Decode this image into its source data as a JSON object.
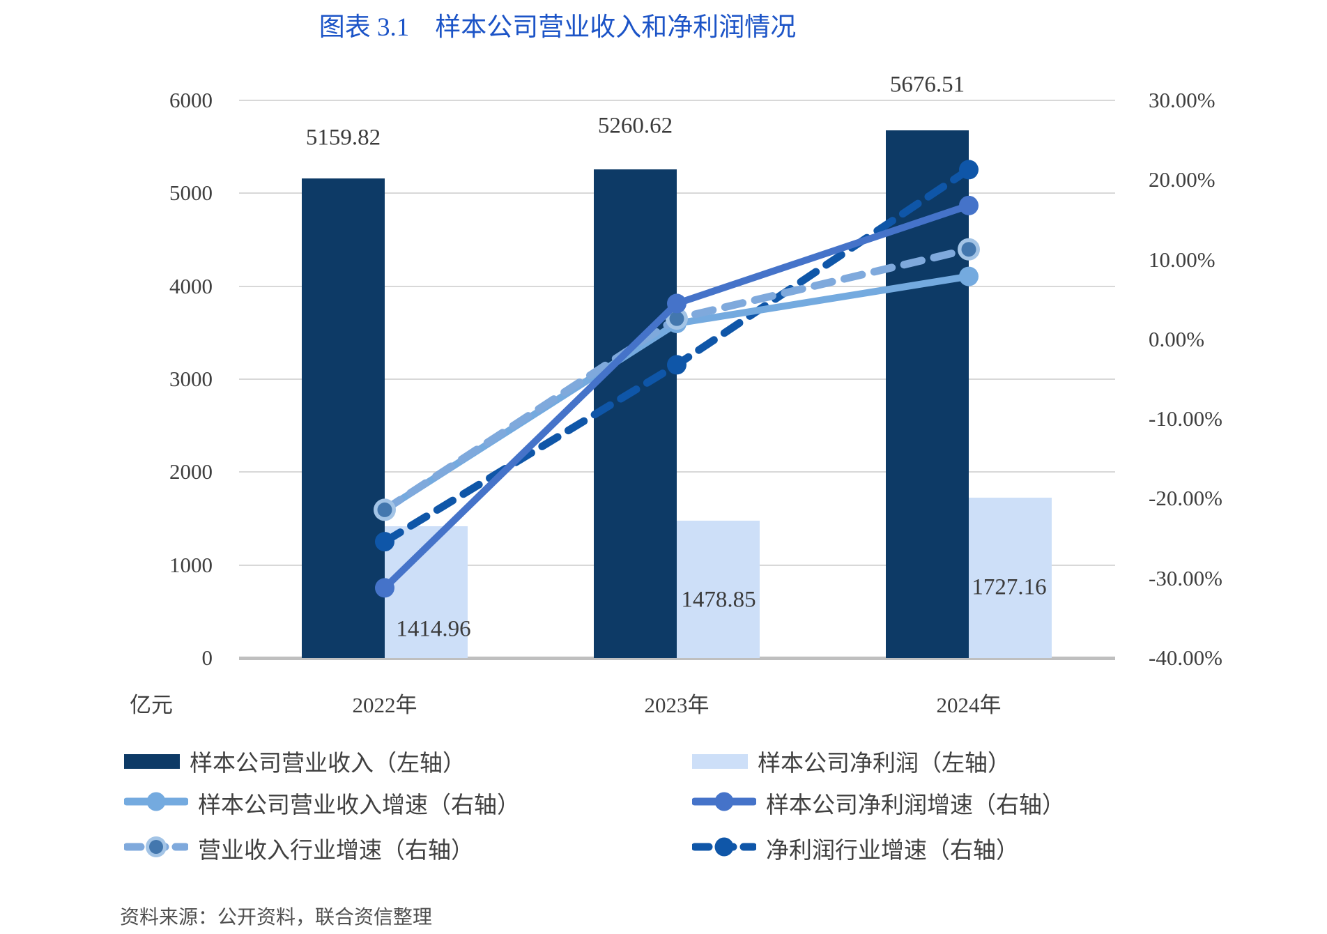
{
  "title": {
    "text": "图表 3.1　样本公司营业收入和净利润情况",
    "color": "#1c54c7"
  },
  "left_axis": {
    "unit_label": "亿元",
    "ticks": [
      "6000",
      "5000",
      "4000",
      "3000",
      "2000",
      "1000",
      "0"
    ],
    "max": 6000,
    "min": 0
  },
  "right_axis": {
    "ticks": [
      "30.00%",
      "20.00%",
      "10.00%",
      "0.00%",
      "-10.00%",
      "-20.00%",
      "-30.00%",
      "-40.00%"
    ],
    "max": 30,
    "min": -40
  },
  "chart_data": {
    "type": "bar+line (dual axis)",
    "categories": [
      "2022年",
      "2023年",
      "2024年"
    ],
    "xlabel": "",
    "ylabel_left": "亿元",
    "ylabel_right": "%",
    "ylim_left": [
      0,
      6000
    ],
    "ylim_right": [
      -40,
      30
    ],
    "grid": true,
    "legend_position": "bottom",
    "bar_series": [
      {
        "name": "样本公司营业收入（左轴）",
        "axis": "left",
        "color": "#0d3a66",
        "values": [
          5159.82,
          5260.62,
          5676.51
        ],
        "labels": [
          "5159.82",
          "5260.62",
          "5676.51"
        ]
      },
      {
        "name": "样本公司净利润（左轴）",
        "axis": "left",
        "color": "#cddff8",
        "values": [
          1414.96,
          1478.85,
          1727.16
        ],
        "labels": [
          "1414.96",
          "1478.85",
          "1727.16"
        ]
      }
    ],
    "line_series": [
      {
        "name": "净利润行业增速（右轴）",
        "axis": "right",
        "style": "dashed",
        "color": "#0f56a8",
        "marker": "#0f56a8",
        "values": [
          -25.4,
          -3.2,
          21.3
        ]
      },
      {
        "name": "样本公司营业收入增速（右轴）",
        "axis": "right",
        "style": "solid",
        "color": "#74aadf",
        "marker": "#74aadf",
        "values": [
          -21.4,
          2.0,
          7.9
        ]
      },
      {
        "name": "营业收入行业增速（右轴）",
        "axis": "right",
        "style": "dashed",
        "color": "#7fa9dc",
        "marker": "#4377ae",
        "ring": "#a3c4e6",
        "values": [
          -21.4,
          2.6,
          11.3
        ]
      },
      {
        "name": "样本公司净利润增速（右轴）",
        "axis": "right",
        "style": "solid",
        "color": "#4573c9",
        "marker": "#4573c9",
        "values": [
          -31.2,
          4.5,
          16.8
        ]
      }
    ]
  },
  "legend": {
    "items": [
      {
        "label": "样本公司营业收入（左轴）",
        "swatch": {
          "type": "rect",
          "color": "#0d3a66"
        }
      },
      {
        "label": "样本公司营业收入增速（右轴）",
        "swatch": {
          "type": "line",
          "color": "#74aadf"
        }
      },
      {
        "label": "营业收入行业增速（右轴）",
        "swatch": {
          "type": "dash",
          "color": "#7fa9dc",
          "marker": "#4377ae",
          "ring": "#a3c4e6"
        }
      },
      {
        "label": "样本公司净利润（左轴）",
        "swatch": {
          "type": "rect",
          "color": "#cddff8"
        }
      },
      {
        "label": "样本公司净利润增速（右轴）",
        "swatch": {
          "type": "line",
          "color": "#4573c9"
        }
      },
      {
        "label": "净利润行业增速（右轴）",
        "swatch": {
          "type": "dash",
          "color": "#0f56a8",
          "marker": "#0f56a8"
        }
      }
    ]
  },
  "source": {
    "text": "资料来源：公开资料，联合资信整理"
  }
}
